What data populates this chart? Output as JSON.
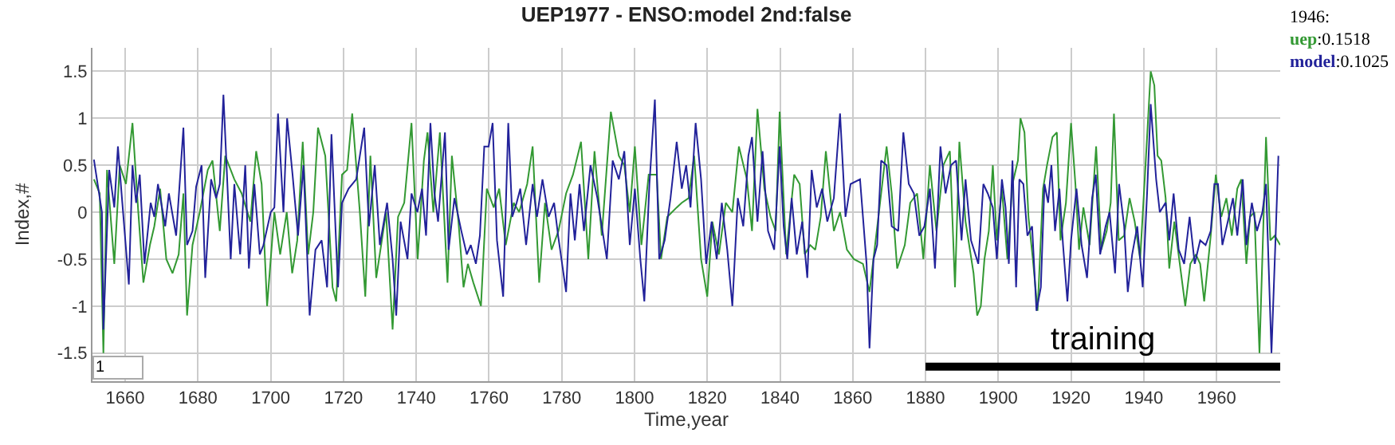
{
  "chart_data": {
    "type": "line",
    "title": "UEP1977 - ENSO:model 2nd:false",
    "xlabel": "Time,year",
    "ylabel": "Index,#",
    "grid": true,
    "marker": "none",
    "line_style": "solid",
    "xlim": [
      1651,
      1977.5
    ],
    "xticks": [
      1660,
      1680,
      1700,
      1720,
      1740,
      1760,
      1780,
      1800,
      1820,
      1840,
      1860,
      1880,
      1900,
      1920,
      1940,
      1960
    ],
    "ylim": [
      -1.8,
      1.75
    ],
    "yticks": [
      -1.5,
      -1,
      -0.5,
      0,
      0.5,
      1,
      1.5
    ],
    "annotations": [
      "1946:",
      ":0.1518",
      ":0.1025",
      "1",
      {
        "text": "training",
        "x": 1929,
        "y": -1.645
      }
    ],
    "series": [
      {
        "color": "#000000",
        "x": [
          1880,
          1977.5
        ],
        "values": [
          -1.645,
          -1.645
        ]
      },
      {
        "name": "uep",
        "color": "#339933",
        "x": [
          1651.4,
          1653,
          1654,
          1655,
          1657,
          1658.5,
          1660.2,
          1662,
          1663.6,
          1665,
          1666.8,
          1668,
          1669.6,
          1671.3,
          1673,
          1674.7,
          1676,
          1677,
          1678.5,
          1680.5,
          1682.7,
          1684,
          1686,
          1687.5,
          1690,
          1692,
          1694.4,
          1696,
          1697.5,
          1699,
          1701,
          1702.6,
          1704.4,
          1705.9,
          1707.3,
          1708.8,
          1710.3,
          1711.7,
          1713,
          1715,
          1717,
          1718,
          1719.6,
          1721,
          1722.4,
          1724.5,
          1726,
          1727.4,
          1729,
          1731.7,
          1733.5,
          1735,
          1736.7,
          1738.7,
          1740.4,
          1742.1,
          1743.1,
          1744.7,
          1746.5,
          1748.6,
          1749.8,
          1751.6,
          1753,
          1754.2,
          1755.7,
          1757.8,
          1759.4,
          1761.3,
          1762.8,
          1764.6,
          1766.8,
          1768.3,
          1770.5,
          1772,
          1773.8,
          1775.4,
          1777.2,
          1779.1,
          1781.2,
          1783.1,
          1785.3,
          1787.3,
          1789,
          1791,
          1793.5,
          1795.7,
          1797.2,
          1798.7,
          1800.1,
          1801.9,
          1803.9,
          1806.1,
          1807.3,
          1809,
          1811.6,
          1813,
          1814.9,
          1816.4,
          1818.3,
          1820,
          1821.4,
          1823.2,
          1825.1,
          1826.9,
          1828.7,
          1830.9,
          1832.3,
          1833.8,
          1835.7,
          1837.4,
          1838.8,
          1839.9,
          1841.7,
          1843.9,
          1845.4,
          1846.8,
          1848.3,
          1849.7,
          1851.2,
          1852.6,
          1854.8,
          1856.5,
          1858.4,
          1860.3,
          1862.8,
          1864.6,
          1867.2,
          1869.3,
          1870.7,
          1872.2,
          1874.3,
          1875.8,
          1877.7,
          1879.4,
          1881.2,
          1883,
          1884.9,
          1886.7,
          1888.1,
          1889.3,
          1891,
          1893.2,
          1894.2,
          1895.2,
          1896.2,
          1897.4,
          1898.5,
          1899.6,
          1901,
          1902.5,
          1903.9,
          1905.4,
          1906.1,
          1907.2,
          1908.3,
          1909.5,
          1910.8,
          1912.3,
          1913.4,
          1914.9,
          1916.1,
          1917.1,
          1918.6,
          1920,
          1921.2,
          1922.2,
          1923.4,
          1925.1,
          1926.9,
          1928.3,
          1929.8,
          1930.9,
          1931.8,
          1933.1,
          1934.6,
          1936.1,
          1937.5,
          1939,
          1940.4,
          1941.9,
          1942.9,
          1943.8,
          1944.8,
          1946,
          1947,
          1948.4,
          1949.9,
          1951.4,
          1952.8,
          1954.3,
          1955.5,
          1956.6,
          1958.4,
          1959.8,
          1961.3,
          1962.7,
          1964.2,
          1965.7,
          1966.8,
          1968.2,
          1969.2,
          1970.4,
          1971.8,
          1973.6,
          1974.8,
          1976,
          1977.5
        ],
        "values": [
          0.35,
          0.2,
          -1.5,
          0.45,
          -0.55,
          0.5,
          0.3,
          0.95,
          0,
          -0.75,
          -0.35,
          -0.15,
          0.25,
          -0.5,
          -0.65,
          -0.45,
          0.2,
          -1.1,
          -0.35,
          0,
          0.45,
          0.55,
          -0.2,
          0.6,
          0.35,
          0.2,
          -0.1,
          0.65,
          0.3,
          -1,
          0,
          -0.45,
          0,
          -0.65,
          -0.3,
          0.75,
          -0.45,
          0,
          0.9,
          0.6,
          -0.8,
          -0.95,
          0.4,
          0.45,
          1.05,
          0,
          -0.9,
          0.6,
          -0.7,
          0,
          -1.25,
          -0.05,
          0.1,
          0.95,
          -0.5,
          0.55,
          0.85,
          0,
          0.85,
          -0.75,
          0.6,
          -0.1,
          -0.8,
          -0.55,
          -0.75,
          -1,
          0.25,
          0.05,
          0.25,
          -0.35,
          0.1,
          0,
          0.3,
          0.7,
          -0.75,
          0.1,
          -0.4,
          -0.2,
          0.2,
          0.4,
          0.75,
          -0.5,
          0.65,
          -0.25,
          1.07,
          0.6,
          0.5,
          0,
          0.7,
          -0.35,
          0.4,
          0.4,
          -0.5,
          -0.05,
          0.05,
          0.1,
          0.15,
          0.6,
          -0.5,
          -0.9,
          -0.1,
          -0.45,
          0.1,
          0,
          0.7,
          0.35,
          -0.2,
          1.1,
          0.25,
          -0.05,
          -0.2,
          1.07,
          -0.45,
          0.4,
          0.3,
          -0.45,
          -0.35,
          -0.4,
          -0.05,
          0.65,
          -0.2,
          0,
          -0.4,
          -0.5,
          -0.55,
          -0.85,
          0,
          0.7,
          0.2,
          -0.6,
          -0.35,
          0.1,
          0.2,
          -0.5,
          0.5,
          -0.2,
          0.5,
          0.65,
          -0.8,
          0.75,
          -0.1,
          -0.65,
          -1.1,
          -1,
          -0.5,
          -0.2,
          0.5,
          -0.3,
          0.25,
          -0.5,
          0.3,
          0.55,
          1,
          0.85,
          -0.05,
          -0.5,
          -1.05,
          0.25,
          0.5,
          0.8,
          0.85,
          -0.3,
          0.1,
          0.95,
          0.3,
          -0.4,
          0.05,
          -0.35,
          0.7,
          -0.4,
          -0.2,
          0.1,
          1.05,
          -0.3,
          -0.25,
          0.15,
          -0.1,
          -0.5,
          0.45,
          1.5,
          1.35,
          0.6,
          0.55,
          0.1518,
          -0.6,
          -0.1,
          -0.55,
          -1,
          -0.55,
          -0.45,
          -0.55,
          -0.95,
          -0.25,
          0.4,
          -0.05,
          0.15,
          -0.25,
          0.25,
          0.35,
          -0.55,
          -0.05,
          0,
          -1.5,
          0.8,
          -0.3,
          -0.25,
          -0.35
        ]
      },
      {
        "name": "model",
        "color": "#22229a",
        "x": [
          1651.4,
          1653.6,
          1654,
          1655.6,
          1657,
          1658,
          1659,
          1661,
          1662,
          1663,
          1664,
          1665.3,
          1667,
          1668,
          1669,
          1671,
          1672,
          1674,
          1676,
          1677,
          1678.5,
          1679.5,
          1681,
          1682,
          1683.6,
          1685,
          1686,
          1687,
          1689,
          1690,
          1691.6,
          1693,
          1694,
          1695.5,
          1697,
          1698,
          1700,
          1701,
          1702,
          1703.5,
          1704.5,
          1706,
          1707.5,
          1709,
          1710.7,
          1712.3,
          1714,
          1715.5,
          1716.7,
          1718.5,
          1719.6,
          1721.4,
          1723.5,
          1725.7,
          1727,
          1728.6,
          1730,
          1732,
          1733.5,
          1734.5,
          1735.7,
          1737.6,
          1738.7,
          1740.3,
          1741.6,
          1742.7,
          1743.9,
          1745,
          1746,
          1747.9,
          1748.9,
          1750.5,
          1752.4,
          1753.9,
          1755,
          1756.4,
          1757.5,
          1758.7,
          1759.9,
          1761,
          1762.2,
          1763.9,
          1765.3,
          1766.4,
          1767.6,
          1768.6,
          1770.2,
          1772,
          1773.2,
          1774.7,
          1776.4,
          1777.9,
          1779,
          1781.2,
          1782.4,
          1783.6,
          1784.9,
          1786.1,
          1787.9,
          1789.8,
          1791,
          1792.4,
          1794,
          1795.7,
          1797.2,
          1798.7,
          1800.1,
          1801.6,
          1802.7,
          1804.1,
          1805.6,
          1806.8,
          1808.3,
          1809.9,
          1811.6,
          1813,
          1814.2,
          1815.4,
          1816.8,
          1818.3,
          1819.7,
          1821.2,
          1822.6,
          1824,
          1825.5,
          1826.9,
          1828.4,
          1829.9,
          1831.3,
          1832.3,
          1833.8,
          1835.2,
          1836.7,
          1838.4,
          1839.9,
          1841,
          1842,
          1843.2,
          1844.6,
          1846.1,
          1847.5,
          1848.7,
          1850.1,
          1851.6,
          1853,
          1854.8,
          1856.5,
          1858,
          1859.4,
          1862,
          1863.8,
          1864.6,
          1865.7,
          1866.7,
          1867.8,
          1869.3,
          1870.7,
          1872.5,
          1873.9,
          1875.4,
          1876.8,
          1878.3,
          1879.7,
          1881.2,
          1882.6,
          1884.1,
          1885.5,
          1887,
          1888.4,
          1889.9,
          1891,
          1892.5,
          1894.5,
          1895.9,
          1897.1,
          1898.5,
          1899.6,
          1901,
          1902,
          1902.9,
          1903.9,
          1904.9,
          1905.8,
          1906.9,
          1908,
          1909.3,
          1910.5,
          1911.7,
          1912.7,
          1913.7,
          1914.6,
          1915.6,
          1916.8,
          1917.8,
          1919,
          1920,
          1921.5,
          1922.9,
          1924.4,
          1925.8,
          1926.8,
          1928,
          1929.5,
          1930.6,
          1932.1,
          1933.2,
          1934.6,
          1935.6,
          1936.8,
          1938.2,
          1939.7,
          1940.9,
          1941.9,
          1943.4,
          1944.4,
          1946,
          1947,
          1948.2,
          1949.6,
          1951.1,
          1952.6,
          1954,
          1955.5,
          1957,
          1958.4,
          1959.4,
          1960.4,
          1961.6,
          1963.1,
          1964.5,
          1965.7,
          1967.2,
          1968.2,
          1969.7,
          1971.1,
          1972.6,
          1973.6,
          1975.1,
          1976.2,
          1977
        ],
        "values": [
          0.56,
          0,
          -1.25,
          0.45,
          0.05,
          0.7,
          0.2,
          -0.77,
          0.5,
          0.1,
          0.4,
          -0.55,
          0.1,
          -0.05,
          0.3,
          -0.15,
          0.2,
          -0.25,
          0.9,
          -0.35,
          -0.2,
          0.27,
          0.5,
          -0.7,
          0.35,
          0.15,
          0.3,
          1.25,
          -0.5,
          0.3,
          -0.45,
          0.5,
          -0.6,
          0.3,
          -0.45,
          -0.35,
          0,
          0.05,
          1.05,
          0,
          1,
          0.4,
          -0.25,
          0.5,
          -1.1,
          -0.4,
          -0.3,
          -0.8,
          0.83,
          -0.8,
          0.1,
          0.25,
          0.35,
          0.9,
          -0.15,
          0.5,
          -0.35,
          0.1,
          -0.5,
          -1.1,
          -0.1,
          -0.5,
          0.2,
          0,
          0.25,
          -0.25,
          0.95,
          0.2,
          -0.1,
          0.85,
          -0.4,
          0.15,
          -0.2,
          -0.45,
          -0.35,
          -0.55,
          -0.25,
          0.7,
          0.7,
          0.95,
          -0.3,
          -0.9,
          0.95,
          -0.05,
          0.1,
          0.25,
          -0.35,
          0.3,
          -0.05,
          0.35,
          -0.05,
          0.1,
          -0.25,
          -0.85,
          0.2,
          -0.3,
          0.3,
          -0.2,
          0.5,
          0.15,
          -0.15,
          -0.5,
          0.55,
          0.35,
          0.65,
          -0.35,
          0.25,
          -0.5,
          -0.95,
          0.3,
          1.2,
          -0.5,
          -0.3,
          0.15,
          0.75,
          0.25,
          0.5,
          0.05,
          0.95,
          0.35,
          -0.55,
          -0.1,
          -0.5,
          0.1,
          -0.4,
          -1,
          0.15,
          -0.15,
          0.6,
          0.8,
          -0.1,
          0.65,
          -0.2,
          -0.4,
          0.7,
          -0.15,
          -0.5,
          0.15,
          -0.45,
          -0.1,
          -0.7,
          0.45,
          0.05,
          0.25,
          -0.1,
          0.15,
          1.05,
          -0.05,
          0.3,
          0.35,
          -0.55,
          -1.45,
          -0.5,
          -0.35,
          0.55,
          0.5,
          -0.15,
          -0.2,
          0.85,
          0.3,
          0.2,
          -0.25,
          -0.15,
          0.25,
          -0.6,
          0.7,
          0.2,
          0.5,
          0.55,
          -0.3,
          0.35,
          -0.3,
          -0.55,
          0.3,
          0.2,
          0.05,
          -0.5,
          0.35,
          0.05,
          -0.55,
          0.55,
          -0.8,
          0.35,
          0.3,
          -0.25,
          -0.15,
          -1.05,
          -0.8,
          0.3,
          0.1,
          0.5,
          -0.2,
          0.25,
          -0.35,
          -0.95,
          -0.3,
          0.25,
          -0.35,
          -0.7,
          0.15,
          0.4,
          -0.45,
          -0.15,
          0,
          -0.65,
          0.3,
          -0.15,
          -0.85,
          -0.45,
          -0.15,
          -0.8,
          0.2,
          1.15,
          0.35,
          0,
          0.1025,
          -0.3,
          0.2,
          -0.4,
          -0.55,
          -0.05,
          -0.55,
          -0.3,
          -0.35,
          -0.2,
          0.3,
          0.3,
          -0.35,
          -0.1,
          0.15,
          -0.25,
          0.35,
          -0.35,
          0.1,
          -0.2,
          0,
          0.3,
          -1.5,
          -0.3,
          0.6
        ]
      }
    ]
  }
}
